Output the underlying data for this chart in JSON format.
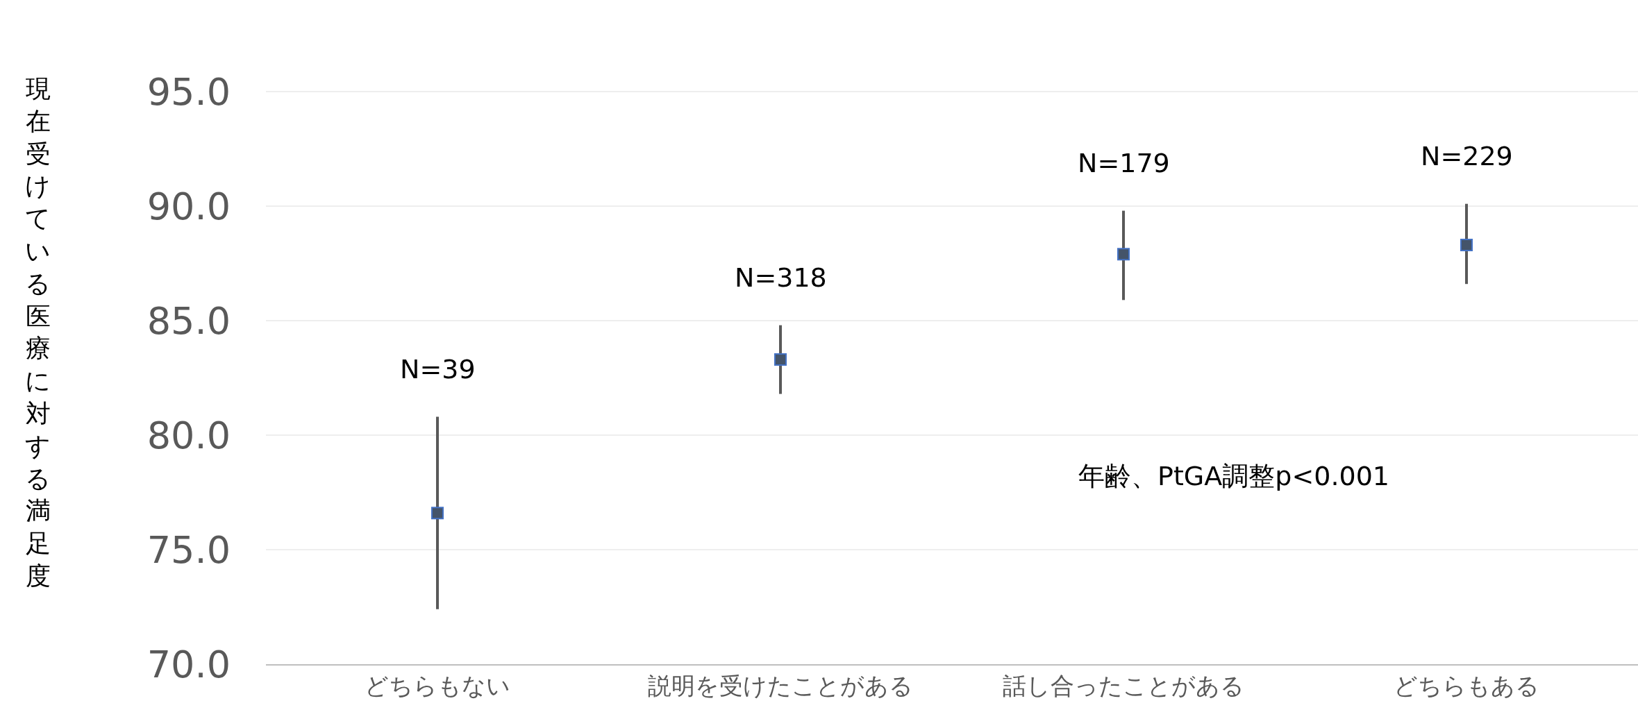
{
  "chart_data": {
    "type": "scatter",
    "ylabel": "現在受けている医療に対する満足度",
    "categories": [
      "どちらもない",
      "説明を受けたことがある",
      "話し合ったことがある",
      "どちらもある"
    ],
    "series": [
      {
        "color": "#44546a",
        "values": [
          76.6,
          83.3,
          87.9,
          88.3
        ],
        "errors": [
          [
            72.4,
            80.8
          ],
          [
            81.8,
            84.8
          ],
          [
            85.9,
            89.8
          ],
          [
            86.6,
            90.1
          ]
        ]
      }
    ],
    "marker": "square",
    "ylim": [
      70,
      99
    ],
    "yticks": [
      {
        "value": 70,
        "label": "70.0"
      },
      {
        "value": 75,
        "label": "75.0"
      },
      {
        "value": 80,
        "label": "80.0"
      },
      {
        "value": 85,
        "label": "85.0"
      },
      {
        "value": 90,
        "label": "90.0"
      },
      {
        "value": 95,
        "label": "95.0"
      }
    ],
    "grid": "y",
    "annotations": [
      "N=39",
      "N=318",
      "N=179",
      "N=229",
      "年齢、PtGA調整p<0.001"
    ]
  }
}
